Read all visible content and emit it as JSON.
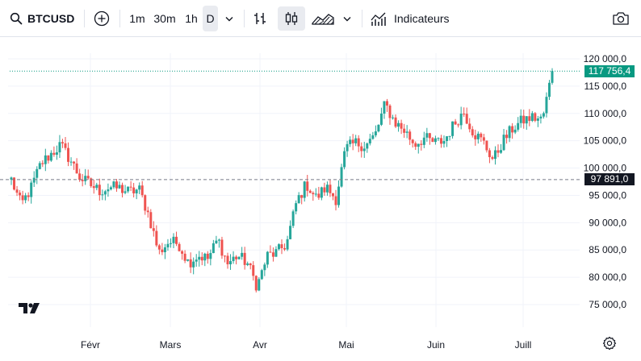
{
  "toolbar": {
    "symbol": "BTCUSD",
    "intervals": [
      "1m",
      "30m",
      "1h",
      "D"
    ],
    "active_interval": "D",
    "indicators_label": "Indicateurs",
    "icons": [
      "search-icon",
      "add-symbol-icon",
      "chevron-down-icon",
      "bar-chart-icon",
      "candles-icon",
      "area-chart-icon",
      "chevron-down-icon",
      "indicators-icon",
      "camera-icon"
    ]
  },
  "chart_data": {
    "type": "candlestick",
    "x_ticks": [
      "Févr",
      "Mars",
      "Avr",
      "Mai",
      "Juin",
      "Juill"
    ],
    "y_ticks": [
      "120 000,0",
      "115 000,0",
      "110 000,0",
      "105 000,0",
      "100 000,0",
      "95 000,0",
      "90 000,0",
      "85 000,0",
      "80 000,0",
      "75 000,0"
    ],
    "ylim": [
      72500,
      122500
    ],
    "last_price": 117756.4,
    "last_price_label": "117 756,4",
    "reference_price": 97891.0,
    "reference_price_label": "97 891,0",
    "colors": {
      "up": "#26a69a",
      "down": "#ef5350",
      "last_price_tag": "#089981",
      "reference_tag": "#131722"
    },
    "close_path": [
      97891,
      93200,
      96300,
      100800,
      102500,
      104200,
      101500,
      98200,
      97000,
      95800,
      96500,
      96300,
      95600,
      96100,
      91200,
      84500,
      86500,
      86200,
      82700,
      84000,
      83400,
      87000,
      82500,
      84000,
      82600,
      78300,
      83900,
      84500,
      86200,
      93800,
      97100,
      94500,
      96500,
      94400,
      103500,
      104600,
      104100,
      106000,
      111700,
      108400,
      106800,
      104400,
      105500,
      104600,
      105000,
      108000,
      110300,
      106500,
      104700,
      101500,
      105000,
      107300,
      108700,
      109300,
      108800,
      117756
    ]
  }
}
